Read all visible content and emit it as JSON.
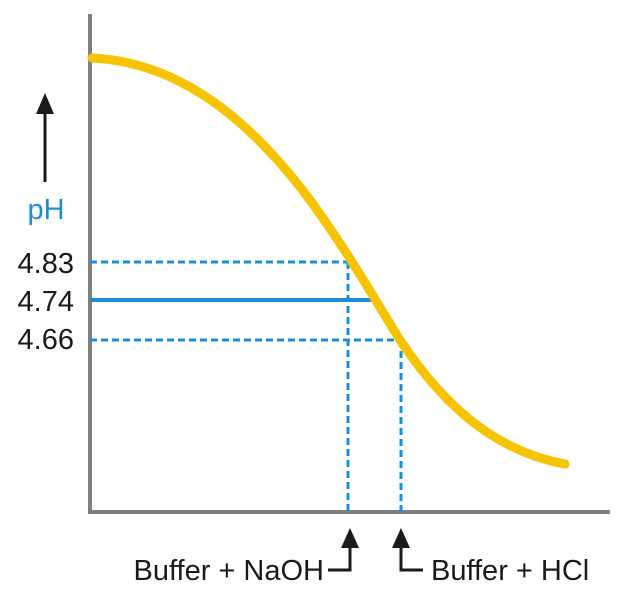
{
  "chart_data": {
    "type": "line",
    "ylabel": "pH",
    "y_ticks": [
      "4.83",
      "4.74",
      "4.66"
    ],
    "y_tick_values": [
      4.83,
      4.74,
      4.66
    ],
    "curve_shape": "decreasing sigmoid (titration curve)",
    "reference_lines": [
      {
        "ph": 4.83,
        "style": "dashed",
        "drops_to": "Buffer + NaOH"
      },
      {
        "ph": 4.74,
        "style": "solid"
      },
      {
        "ph": 4.66,
        "style": "dashed",
        "drops_to": "Buffer + HCl"
      }
    ],
    "annotations": [
      "Buffer + NaOH",
      "Buffer + HCl"
    ],
    "grid": false,
    "legend": "none"
  },
  "colors": {
    "curve": "#f5c300",
    "reference": "#1b8fd6",
    "axis": "#7f7f7f",
    "label": "#1b8fd6",
    "text": "#1a1a1a"
  },
  "labels": {
    "naoh": "Buffer + NaOH",
    "hcl": "Buffer + HCl"
  }
}
